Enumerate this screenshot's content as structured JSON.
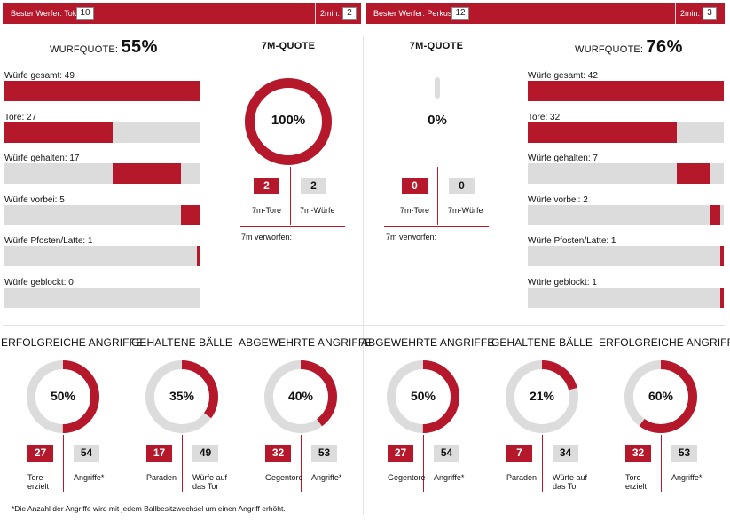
{
  "colors": {
    "accent": "#b5182b",
    "track": "#dcdcdc"
  },
  "left_team": {
    "topbar": {
      "best_label": "Bester Werfer: Tokic",
      "best_value": "10",
      "twomin_label": "2min:",
      "twomin_value": "2"
    },
    "wurfquote": {
      "label": "WURFQUOTE:",
      "value": "55%"
    },
    "bars": [
      {
        "label": "Würfe gesamt: 49",
        "fraction": 1.0
      },
      {
        "label": "Tore: 27",
        "fraction": 0.55
      },
      {
        "label": "Würfe gehalten: 17",
        "fraction": 0.35
      },
      {
        "label": "Würfe vorbei: 5",
        "fraction": 0.1
      },
      {
        "label": "Würfe Pfosten/Latte: 1",
        "fraction": 0.02
      },
      {
        "label": "Würfe geblockt: 0",
        "fraction": 0.0
      }
    ],
    "seven_m": {
      "title": "7M-QUOTE",
      "percent_text": "100%",
      "percent": 100,
      "tore": "2",
      "tore_label": "7m-Tore",
      "wuerfe": "2",
      "wuerfe_label": "7m-Würfe",
      "verworfen_label": "7m verworfen:"
    }
  },
  "right_team": {
    "topbar": {
      "best_label": "Bester Werfer: Perkusic",
      "best_value": "12",
      "twomin_label": "2min:",
      "twomin_value": "3"
    },
    "wurfquote": {
      "label": "WURFQUOTE:",
      "value": "76%"
    },
    "bars": [
      {
        "label": "Würfe gesamt: 42",
        "fraction": 1.0
      },
      {
        "label": "Tore: 32",
        "fraction": 0.76
      },
      {
        "label": "Würfe gehalten: 7",
        "fraction": 0.17
      },
      {
        "label": "Würfe vorbei: 2",
        "fraction": 0.05
      },
      {
        "label": "Würfe Pfosten/Latte: 1",
        "fraction": 0.02
      },
      {
        "label": "Würfe geblockt: 1",
        "fraction": 0.02
      }
    ],
    "seven_m": {
      "title": "7M-QUOTE",
      "percent_text": "0%",
      "percent": 0,
      "tore": "0",
      "tore_label": "7m-Tore",
      "wuerfe": "0",
      "wuerfe_label": "7m-Würfe",
      "verworfen_label": "7m verworfen:"
    }
  },
  "bottom": [
    {
      "title": "ERFOLGREICHE ANGRIFFE",
      "percent_text": "50%",
      "percent": 50,
      "red_value": "27",
      "red_label": "Tore erzielt",
      "grey_value": "54",
      "grey_label": "Angriffe*"
    },
    {
      "title": "GEHALTENE BÄLLE",
      "percent_text": "35%",
      "percent": 35,
      "red_value": "17",
      "red_label": "Paraden",
      "grey_value": "49",
      "grey_label": "Würfe auf das Tor"
    },
    {
      "title": "ABGEWEHRTE ANGRIFFE",
      "percent_text": "40%",
      "percent": 40,
      "red_value": "32",
      "red_label": "Gegentore",
      "grey_value": "53",
      "grey_label": "Angriffe*"
    },
    {
      "title": "ABGEWEHRTE ANGRIFFE",
      "percent_text": "50%",
      "percent": 50,
      "red_value": "27",
      "red_label": "Gegentore",
      "grey_value": "54",
      "grey_label": "Angriffe*"
    },
    {
      "title": "GEHALTENE BÄLLE",
      "percent_text": "21%",
      "percent": 21,
      "red_value": "7",
      "red_label": "Paraden",
      "grey_value": "34",
      "grey_label": "Würfe auf das Tor"
    },
    {
      "title": "ERFOLGREICHE ANGRIFFE",
      "percent_text": "60%",
      "percent": 60,
      "red_value": "32",
      "red_label": "Tore erzielt",
      "grey_value": "53",
      "grey_label": "Angriffe*"
    }
  ],
  "footnote": "*Die Anzahl der Angriffe wird mit jedem Ballbesitzwechsel um einen Angriff erhöht."
}
